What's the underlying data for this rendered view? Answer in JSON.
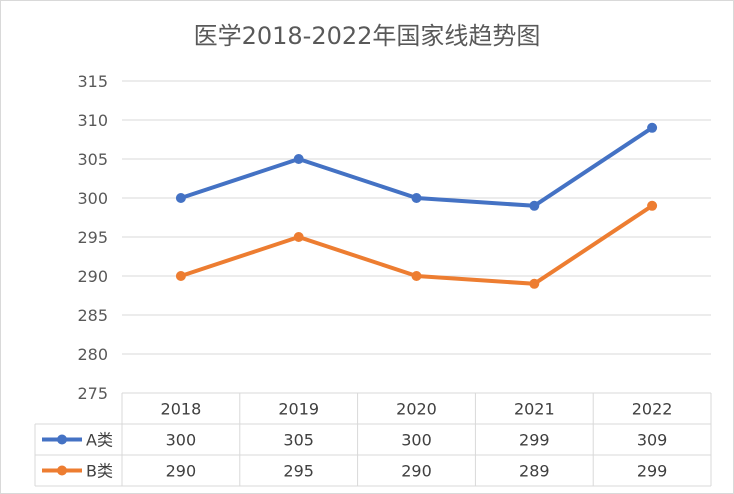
{
  "chart_data": {
    "type": "line",
    "title": "医学2018-2022年国家线趋势图",
    "categories": [
      "2018",
      "2019",
      "2020",
      "2021",
      "2022"
    ],
    "series": [
      {
        "name": "A类",
        "values": [
          300,
          305,
          300,
          299,
          309
        ],
        "color": "#4472c4"
      },
      {
        "name": "B类",
        "values": [
          290,
          295,
          290,
          289,
          299
        ],
        "color": "#ed7d31"
      }
    ],
    "ylim": [
      275,
      315
    ],
    "yticks": [
      275,
      280,
      285,
      290,
      295,
      300,
      305,
      310,
      315
    ],
    "grid": true,
    "legend": "data-table"
  }
}
